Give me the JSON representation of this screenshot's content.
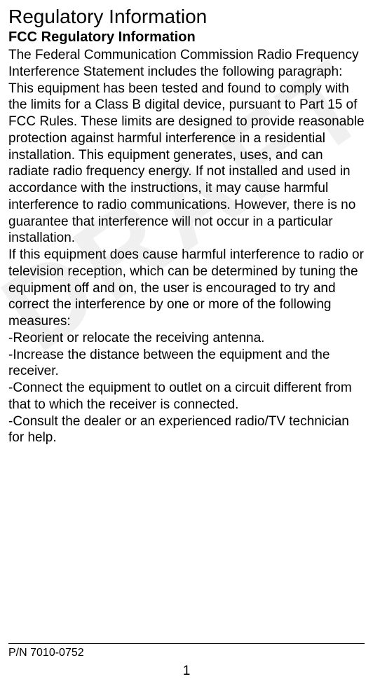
{
  "watermark": "DRAFT",
  "title": "Regulatory Information",
  "subtitle": "FCC Regulatory Information",
  "paragraph1": "The Federal Communication Commission Radio Frequency Interference Statement includes the following paragraph:",
  "paragraph2": "This equipment has been tested and found to comply with the limits for a Class B digital device, pursuant to Part 15 of FCC Rules. These limits are designed to provide reasonable protection against harmful interference in a residential installation. This equipment generates, uses, and can radiate radio frequency energy. If not installed and used in accordance with the instructions, it may cause harmful interference to radio communications. However, there is no guarantee that interference will not occur in a particular installation.",
  "paragraph3": "If this equipment does cause harmful interference to radio or television reception, which can be determined by tuning the equipment off and on, the user is encouraged to try and correct the interference by one or more of the following measures:",
  "bullet1": "-Reorient or relocate the receiving antenna.",
  "bullet2": "-Increase the distance between the equipment and the receiver.",
  "bullet3": "-Connect the equipment to outlet on a circuit different from that to which the receiver is connected.",
  "bullet4": "-Consult the dealer or an experienced radio/TV technician for help.",
  "partNumber": "P/N 7010-0752",
  "pageNumber": "1",
  "colors": {
    "background": "#ffffff",
    "text": "#000000",
    "watermark": "rgba(128, 128, 128, 0.12)"
  },
  "fonts": {
    "title_size": 28,
    "subtitle_size": 20,
    "body_size": 19,
    "partnum_size": 16
  }
}
